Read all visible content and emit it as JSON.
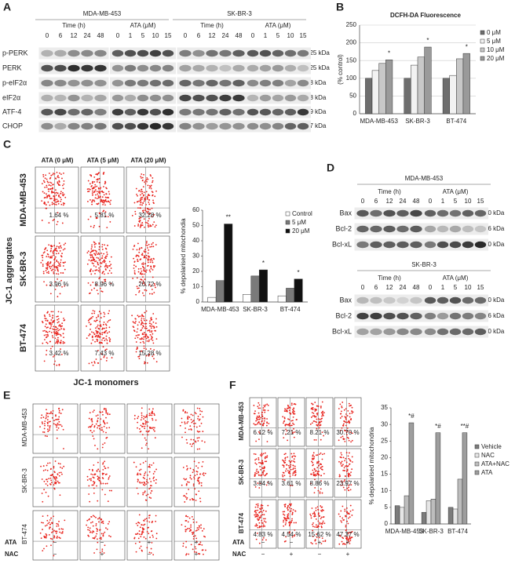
{
  "panel_labels": [
    "A",
    "B",
    "C",
    "D",
    "E",
    "F"
  ],
  "blots_a": {
    "cell_lines": [
      "MDA-MB-453",
      "SK-BR-3"
    ],
    "conditions": [
      "Time (h)",
      "ATA (μM)",
      "Time (h)",
      "ATA (μM)"
    ],
    "lanes": [
      [
        "0",
        "6",
        "12",
        "24",
        "48"
      ],
      [
        "0",
        "1",
        "5",
        "10",
        "15"
      ],
      [
        "0",
        "6",
        "12",
        "24",
        "48"
      ],
      [
        "0",
        "1",
        "5",
        "10",
        "15"
      ]
    ],
    "proteins": [
      "p-PERK",
      "PERK",
      "p-eIF2α",
      "eIF2α",
      "ATF-4",
      "CHOP"
    ],
    "sizes": [
      "125 kDa",
      "125 kDa",
      "38 kDa",
      "38 kDa",
      "49 kDa",
      "27 kDa"
    ]
  },
  "blots_d": [
    {
      "cell_line": "MDA-MB-453",
      "conditions": [
        "Time (h)",
        "ATA (μM)"
      ],
      "lanes": [
        [
          "0",
          "6",
          "12",
          "24",
          "48"
        ],
        [
          "0",
          "1",
          "5",
          "10",
          "15"
        ]
      ],
      "proteins": [
        "Bax",
        "Bcl-2",
        "Bcl-xL"
      ],
      "sizes": [
        "20 kDa",
        "26 kDa",
        "30 kDa"
      ]
    },
    {
      "cell_line": "SK-BR-3",
      "conditions": [
        "Time (h)",
        "ATA (μM)"
      ],
      "lanes": [
        [
          "0",
          "6",
          "12",
          "24",
          "48"
        ],
        [
          "0",
          "1",
          "5",
          "10",
          "15"
        ]
      ],
      "proteins": [
        "Bax",
        "Bcl-2",
        "Bcl-xL"
      ],
      "sizes": [
        "20 kDa",
        "26 kDa",
        "30 kDa"
      ]
    }
  ],
  "flow_c": {
    "columns": [
      "ATA (0 μM)",
      "ATA (5 μM)",
      "ATA (20 μM)"
    ],
    "rows": [
      "MDA-MB-453",
      "SK-BR-3",
      "BT-474"
    ],
    "percentages": [
      [
        "1.64 %",
        "5.81 %",
        "32.28 %"
      ],
      [
        "3.96 %",
        "8.96 %",
        "20.72 %"
      ],
      [
        "3.42 %",
        "7.43 %",
        "15.28 %"
      ]
    ],
    "y_label": "JC-1 aggregates",
    "x_label": "JC-1 monomers"
  },
  "flow_e": {
    "rows": [
      "MDA-MB-453",
      "SK-BR-3",
      "BT-474"
    ],
    "treatments": [
      {
        "name": "ATA",
        "signs": [
          "−",
          "−",
          "+",
          "+"
        ]
      },
      {
        "name": "NAC",
        "signs": [
          "−",
          "+",
          "−",
          "+"
        ]
      }
    ]
  },
  "flow_f": {
    "rows": [
      "MDA-MB-453",
      "SK-BR-3",
      "BT-474"
    ],
    "percentages": [
      [
        "6.12 %",
        "7.21 %",
        "8.21 %",
        "30.70 %"
      ],
      [
        "3.84 %",
        "3.61 %",
        "8.86 %",
        "23.97 %"
      ],
      [
        "4.83 %",
        "4.54 %",
        "15.62 %",
        "47.37 %"
      ]
    ],
    "treatments": [
      {
        "name": "ATA",
        "signs": [
          "−",
          "−",
          "+",
          "+"
        ]
      },
      {
        "name": "NAC",
        "signs": [
          "−",
          "+",
          "−",
          "+"
        ]
      }
    ]
  },
  "chart_data": [
    {
      "type": "bar",
      "title": "DCFH-DA Fluorescence",
      "y_label": "(% control)",
      "categories": [
        "MDA-MB-453",
        "SK-BR-3",
        "BT-474"
      ],
      "series": [
        {
          "name": "0 μM",
          "color": "#6e6e6e",
          "values": [
            100,
            100,
            100
          ]
        },
        {
          "name": "5 μM",
          "color": "#f2f2f2",
          "values": [
            122,
            137,
            108
          ]
        },
        {
          "name": "10 μM",
          "color": "#c8c8c8",
          "values": [
            142,
            160,
            155
          ]
        },
        {
          "name": "20 μM",
          "color": "#9a9a9a",
          "values": [
            152,
            188,
            170
          ]
        }
      ],
      "annotations": [
        "*",
        "*",
        "*"
      ],
      "ylim": [
        0,
        250
      ],
      "yticks": [
        0,
        50,
        100,
        150,
        200,
        250
      ],
      "grid": true
    },
    {
      "type": "bar",
      "y_label": "% depolarised mitochondia",
      "categories": [
        "MDA-MB-453",
        "SK-BR-3",
        "BT-474"
      ],
      "series": [
        {
          "name": "Control",
          "color": "#ffffff",
          "values": [
            3,
            5,
            4
          ]
        },
        {
          "name": "5 μM",
          "color": "#7a7a7a",
          "values": [
            14,
            17,
            9
          ]
        },
        {
          "name": "20 μM",
          "color": "#111111",
          "values": [
            51,
            21,
            15
          ]
        }
      ],
      "annotations": [
        "**",
        "*",
        "*"
      ],
      "ylim": [
        0,
        60
      ],
      "yticks": [
        0,
        10,
        20,
        30,
        40,
        50,
        60
      ],
      "grid": false
    },
    {
      "type": "bar",
      "y_label": "% depolarised mitochondria",
      "categories": [
        "MDA-MB-453",
        "SK-BR-3",
        "BT-474"
      ],
      "series": [
        {
          "name": "Vehicle",
          "color": "#7c7c7c",
          "values": [
            5.5,
            3.5,
            5
          ]
        },
        {
          "name": "NAC",
          "color": "#e6e6e6",
          "values": [
            5,
            7,
            4.5
          ]
        },
        {
          "name": "ATA+NAC",
          "color": "#bdbdbd",
          "values": [
            8.5,
            7.5,
            13.5
          ]
        },
        {
          "name": "ATA",
          "color": "#9e9e9e",
          "values": [
            30.5,
            27.5,
            27.5
          ]
        }
      ],
      "annotations": [
        "*#",
        "*#",
        "**#"
      ],
      "ylim": [
        0,
        35
      ],
      "yticks": [
        0,
        5,
        10,
        15,
        20,
        25,
        30,
        35
      ],
      "grid": false
    }
  ]
}
